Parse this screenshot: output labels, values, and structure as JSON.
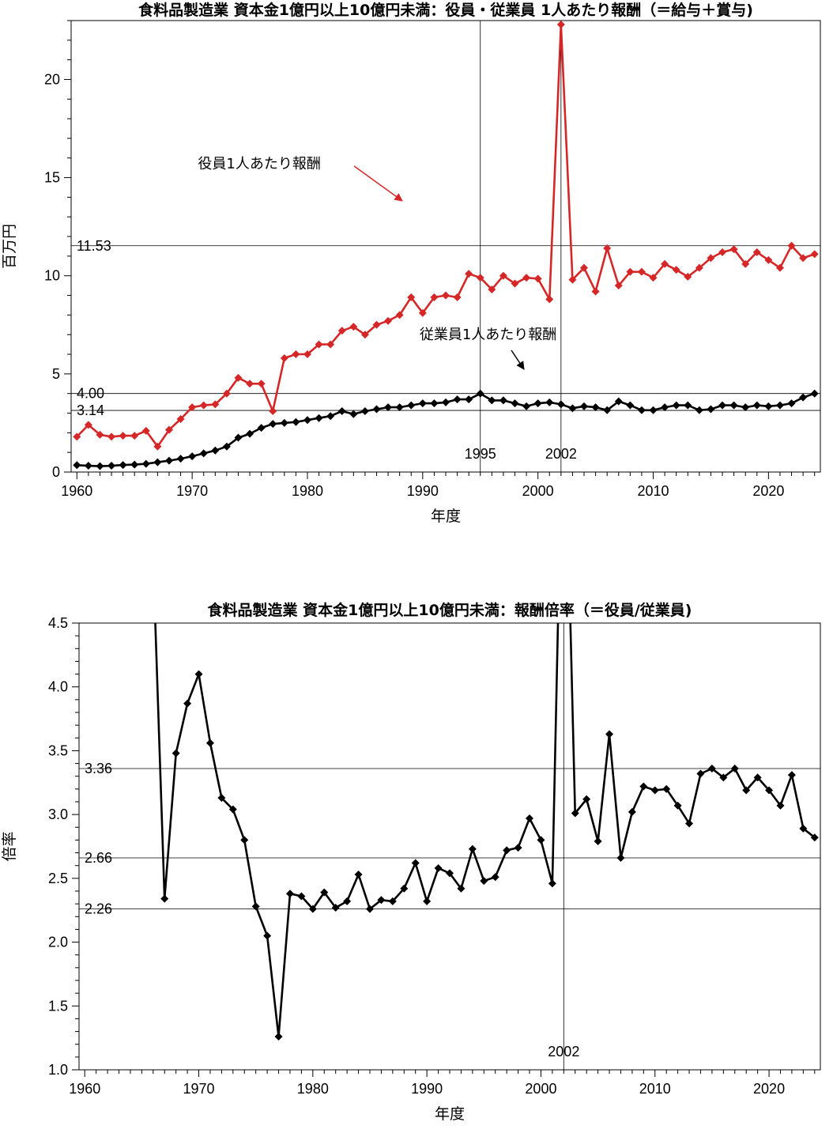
{
  "chart_data": [
    {
      "type": "line",
      "title": "食料品製造業 資本金1億円以上10億円未満：役員・従業員 1人あたり報酬（＝給与＋賞与)",
      "xlabel": "年度",
      "ylabel": "百万円",
      "xlim": [
        1959.5,
        2024.5
      ],
      "ylim": [
        0,
        23
      ],
      "xticks": [
        1960,
        1970,
        1980,
        1990,
        2000,
        2010,
        2020
      ],
      "yticks": [
        0,
        5,
        10,
        15,
        20
      ],
      "ytick_labels": [
        "0",
        "5",
        "10",
        "15",
        "20"
      ],
      "xtick_labels": [
        "1960",
        "1970",
        "1980",
        "1990",
        "2000",
        "2010",
        "2020"
      ],
      "hlines": [
        {
          "y": 11.53,
          "label": "11.53"
        },
        {
          "y": 4.0,
          "label": "4.00"
        },
        {
          "y": 3.14,
          "label": "3.14"
        }
      ],
      "vlines": [
        {
          "x": 1995,
          "label": "1995"
        },
        {
          "x": 2002,
          "label": "2002"
        }
      ],
      "annotations": [
        {
          "text": "役員1人あたり報酬",
          "x": 1970.5,
          "y": 15.7
        },
        {
          "text": "従業員1人あたり報酬",
          "x": 1990,
          "y": 7.0
        }
      ],
      "x": [
        1960,
        1961,
        1962,
        1963,
        1964,
        1965,
        1966,
        1967,
        1968,
        1969,
        1970,
        1971,
        1972,
        1973,
        1974,
        1975,
        1976,
        1977,
        1978,
        1979,
        1980,
        1981,
        1982,
        1983,
        1984,
        1985,
        1986,
        1987,
        1988,
        1989,
        1990,
        1991,
        1992,
        1993,
        1994,
        1995,
        1996,
        1997,
        1998,
        1999,
        2000,
        2001,
        2002,
        2003,
        2004,
        2005,
        2006,
        2007,
        2008,
        2009,
        2010,
        2011,
        2012,
        2013,
        2014,
        2015,
        2016,
        2017,
        2018,
        2019,
        2020,
        2021,
        2022,
        2023,
        2024
      ],
      "series": [
        {
          "name": "役員1人あたり報酬",
          "color": "#d62728",
          "values": [
            1.8,
            2.4,
            1.9,
            1.8,
            1.85,
            1.85,
            2.1,
            1.3,
            2.15,
            2.7,
            3.3,
            3.4,
            3.45,
            4.0,
            4.8,
            4.5,
            4.5,
            3.1,
            5.8,
            6.0,
            6.0,
            6.5,
            6.5,
            7.2,
            7.4,
            7.0,
            7.5,
            7.7,
            8.0,
            8.9,
            8.1,
            8.9,
            9.0,
            8.9,
            10.1,
            9.9,
            9.3,
            10.0,
            9.6,
            9.9,
            9.85,
            8.8,
            22.8,
            9.8,
            10.4,
            9.2,
            11.4,
            9.5,
            10.2,
            10.2,
            9.9,
            10.6,
            10.3,
            9.95,
            10.4,
            10.9,
            11.2,
            11.35,
            10.6,
            11.2,
            10.8,
            10.4,
            11.53,
            10.9,
            11.1
          ]
        },
        {
          "name": "従業員1人あたり報酬",
          "color": "#000000",
          "values": [
            0.35,
            0.32,
            0.3,
            0.32,
            0.36,
            0.38,
            0.42,
            0.5,
            0.58,
            0.68,
            0.8,
            0.95,
            1.1,
            1.3,
            1.75,
            1.95,
            2.25,
            2.45,
            2.5,
            2.55,
            2.65,
            2.75,
            2.85,
            3.1,
            2.95,
            3.1,
            3.2,
            3.3,
            3.3,
            3.4,
            3.5,
            3.5,
            3.55,
            3.7,
            3.7,
            4.0,
            3.65,
            3.65,
            3.5,
            3.35,
            3.5,
            3.55,
            3.45,
            3.25,
            3.35,
            3.3,
            3.15,
            3.6,
            3.4,
            3.15,
            3.15,
            3.3,
            3.4,
            3.4,
            3.15,
            3.2,
            3.4,
            3.4,
            3.3,
            3.4,
            3.35,
            3.4,
            3.5,
            3.8,
            4.0
          ]
        }
      ]
    },
    {
      "type": "line",
      "title": "食料品製造業 資本金1億円以上10億円未満：報酬倍率（＝役員/従業員)",
      "xlabel": "年度",
      "ylabel": "倍率",
      "xlim": [
        1959.5,
        2024.5
      ],
      "ylim": [
        1.0,
        4.5
      ],
      "xticks": [
        1960,
        1970,
        1980,
        1990,
        2000,
        2010,
        2020
      ],
      "yticks": [
        1.0,
        1.5,
        2.0,
        2.5,
        3.0,
        3.5,
        4.0,
        4.5
      ],
      "ytick_labels": [
        "1.0",
        "1.5",
        "2.0",
        "2.5",
        "3.0",
        "3.5",
        "4.0",
        "4.5"
      ],
      "xtick_labels": [
        "1960",
        "1970",
        "1980",
        "1990",
        "2000",
        "2010",
        "2020"
      ],
      "hlines": [
        {
          "y": 3.36,
          "label": "3.36"
        },
        {
          "y": 2.66,
          "label": "2.66"
        },
        {
          "y": 2.26,
          "label": "2.26"
        }
      ],
      "vlines": [
        {
          "x": 2002,
          "label": "2002"
        }
      ],
      "x": [
        1966,
        1967,
        1968,
        1969,
        1970,
        1971,
        1972,
        1973,
        1974,
        1975,
        1976,
        1977,
        1978,
        1979,
        1980,
        1981,
        1982,
        1983,
        1984,
        1985,
        1986,
        1987,
        1988,
        1989,
        1990,
        1991,
        1992,
        1993,
        1994,
        1995,
        1996,
        1997,
        1998,
        1999,
        2000,
        2001,
        2002,
        2003,
        2004,
        2005,
        2006,
        2007,
        2008,
        2009,
        2010,
        2011,
        2012,
        2013,
        2014,
        2015,
        2016,
        2017,
        2018,
        2019,
        2020,
        2021,
        2022,
        2023,
        2024
      ],
      "series": [
        {
          "name": "",
          "color": "#000000",
          "values": [
            5.0,
            2.34,
            3.48,
            3.87,
            4.1,
            3.56,
            3.13,
            3.04,
            2.8,
            2.28,
            2.05,
            1.26,
            2.38,
            2.36,
            2.26,
            2.39,
            2.27,
            2.32,
            2.53,
            2.26,
            2.33,
            2.32,
            2.42,
            2.62,
            2.32,
            2.58,
            2.54,
            2.42,
            2.73,
            2.48,
            2.51,
            2.72,
            2.74,
            2.97,
            2.8,
            2.46,
            6.6,
            3.01,
            3.12,
            2.79,
            3.63,
            2.66,
            3.02,
            3.22,
            3.19,
            3.2,
            3.07,
            2.93,
            3.32,
            3.36,
            3.29,
            3.36,
            3.19,
            3.29,
            3.19,
            3.07,
            3.31,
            2.89,
            2.82
          ]
        }
      ]
    }
  ]
}
